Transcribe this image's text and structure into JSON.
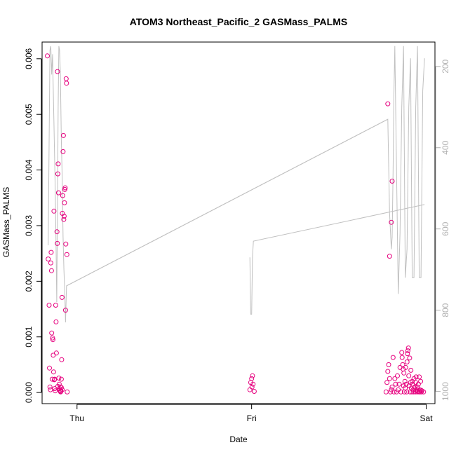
{
  "chart_data": {
    "type": "scatter",
    "title": "ATOM3 Northeast_Pacific_2 GASMass_PALMS",
    "xlabel": "Date",
    "ylabel": "GASMass_PALMS",
    "x_ticks": [
      "Thu",
      "Fri",
      "Sat"
    ],
    "y_ticks": [
      "0.000",
      "0.001",
      "0.002",
      "0.003",
      "0.004",
      "0.005",
      "0.006"
    ],
    "y_right_ticks": [
      "200",
      "400",
      "600",
      "800",
      "1000"
    ],
    "ylim": [
      -0.0002,
      0.0063
    ],
    "y_right_lim": [
      1030,
      140
    ],
    "xlim": [
      -0.2,
      2.05
    ],
    "colors": {
      "points": "#e6007e",
      "line": "#c0c0c0",
      "axis": "#000000",
      "right_axis": "#b0b0b0"
    },
    "series": [
      {
        "type": "scatter",
        "points": [
          [
            -0.17,
            0.00605
          ],
          [
            -0.165,
            0.0024
          ],
          [
            -0.16,
            0.00157
          ],
          [
            -0.158,
            0.00044
          ],
          [
            -0.155,
            0.0001
          ],
          [
            -0.152,
            5e-05
          ],
          [
            -0.15,
            0.00233
          ],
          [
            -0.148,
            0.00252
          ],
          [
            -0.146,
            0.00219
          ],
          [
            -0.145,
            0.00107
          ],
          [
            -0.14,
            0.00098
          ],
          [
            -0.138,
            0.00095
          ],
          [
            -0.136,
            0.00067
          ],
          [
            -0.134,
            0.00037
          ],
          [
            -0.132,
            0.00326
          ],
          [
            -0.13,
            0.00023
          ],
          [
            -0.128,
            7e-05
          ],
          [
            -0.125,
            3e-05
          ],
          [
            -0.122,
            0.00157
          ],
          [
            -0.12,
            0.00127
          ],
          [
            -0.118,
            0.00071
          ],
          [
            -0.115,
            0.00289
          ],
          [
            -0.113,
            0.00268
          ],
          [
            -0.112,
            0.00577
          ],
          [
            -0.11,
            0.00393
          ],
          [
            -0.108,
            0.00411
          ],
          [
            -0.106,
            0.00359
          ],
          [
            -0.104,
            0.00026
          ],
          [
            -0.102,
            0.00015
          ],
          [
            -0.1,
            7e-05
          ],
          [
            -0.098,
            4e-05
          ],
          [
            -0.096,
            0.0001
          ],
          [
            -0.094,
            1e-05
          ],
          [
            -0.092,
            3e-05
          ],
          [
            -0.09,
            9e-05
          ],
          [
            -0.088,
            0.00059
          ],
          [
            -0.086,
            0.00171
          ],
          [
            -0.084,
            0.00322
          ],
          [
            -0.082,
            0.00354
          ],
          [
            -0.08,
            0.00433
          ],
          [
            -0.078,
            0.00462
          ],
          [
            -0.076,
            0.00311
          ],
          [
            -0.074,
            0.00317
          ],
          [
            -0.072,
            0.00341
          ],
          [
            -0.07,
            0.00365
          ],
          [
            -0.068,
            0.00368
          ],
          [
            -0.066,
            0.00148
          ],
          [
            -0.064,
            0.00267
          ],
          [
            -0.062,
            0.00564
          ],
          [
            -0.06,
            0.00556
          ],
          [
            -0.058,
            0.00248
          ],
          [
            -0.056,
            1e-05
          ],
          [
            -0.142,
            0.00024
          ],
          [
            -0.128,
            0.00024
          ],
          [
            -0.11,
            0.00011
          ],
          [
            -0.09,
            0.00024
          ],
          [
            -0.095,
            2e-05
          ],
          [
            -0.085,
            5e-05
          ],
          [
            0.99,
            5e-05
          ],
          [
            0.995,
            0.00018
          ],
          [
            1.0,
            0.00025
          ],
          [
            1.002,
            0.0001
          ],
          [
            1.005,
            0.0003
          ],
          [
            1.008,
            0.00015
          ],
          [
            1.015,
            2e-05
          ],
          [
            1.78,
            0.00519
          ],
          [
            1.79,
            0.00245
          ],
          [
            1.8,
            0.00306
          ],
          [
            1.805,
            0.0038
          ],
          [
            1.77,
            1e-05
          ],
          [
            1.775,
            0.00018
          ],
          [
            1.78,
            0.00038
          ],
          [
            1.785,
            0.0005
          ],
          [
            1.79,
            0.00025
          ],
          [
            1.795,
            1e-05
          ],
          [
            1.8,
            5e-05
          ],
          [
            1.805,
            0.0001
          ],
          [
            1.81,
            0.00063
          ],
          [
            1.815,
            1e-05
          ],
          [
            1.82,
            0.00025
          ],
          [
            1.825,
            0.00015
          ],
          [
            1.83,
            1e-05
          ],
          [
            1.835,
            0.0003
          ],
          [
            1.84,
            5e-05
          ],
          [
            1.845,
            0.00015
          ],
          [
            1.85,
            0.00045
          ],
          [
            1.855,
            1e-05
          ],
          [
            1.86,
            0.00072
          ],
          [
            1.862,
            0.00063
          ],
          [
            1.865,
            0.0005
          ],
          [
            1.868,
            0.00042
          ],
          [
            1.87,
            0.00012
          ],
          [
            1.872,
            0.00035
          ],
          [
            1.875,
            1e-05
          ],
          [
            1.878,
            0.0002
          ],
          [
            1.88,
            8e-05
          ],
          [
            1.882,
            0.00045
          ],
          [
            1.885,
            0.00015
          ],
          [
            1.888,
            1e-05
          ],
          [
            1.89,
            0.00055
          ],
          [
            1.892,
            0.0007
          ],
          [
            1.895,
            0.00075
          ],
          [
            1.898,
            0.0008
          ],
          [
            1.9,
            0.0003
          ],
          [
            1.902,
            0.00012
          ],
          [
            1.905,
            0.00062
          ],
          [
            1.908,
            1e-05
          ],
          [
            1.91,
            0.00018
          ],
          [
            1.912,
            0.0004
          ],
          [
            1.915,
            8e-05
          ],
          [
            1.918,
            1e-05
          ],
          [
            1.92,
            0.0002
          ],
          [
            1.922,
            0.00015
          ],
          [
            1.925,
            5e-05
          ],
          [
            1.928,
            1e-05
          ],
          [
            1.93,
            0.00025
          ],
          [
            1.932,
            8e-05
          ],
          [
            1.935,
            0.0001
          ],
          [
            1.938,
            1e-05
          ],
          [
            1.94,
            0.00018
          ],
          [
            1.942,
            0.00028
          ],
          [
            1.945,
            5e-05
          ],
          [
            1.948,
            1e-05
          ],
          [
            1.95,
            0.0001
          ],
          [
            1.952,
            2e-05
          ],
          [
            1.955,
            0.00015
          ],
          [
            1.958,
            1e-05
          ],
          [
            1.96,
            0.00028
          ],
          [
            1.962,
            5e-05
          ],
          [
            1.965,
            1e-05
          ],
          [
            1.968,
            0.0002
          ],
          [
            1.97,
            4e-05
          ],
          [
            1.972,
            1e-05
          ],
          [
            1.975,
            3e-05
          ],
          [
            1.985,
            1e-05
          ]
        ]
      },
      {
        "type": "line",
        "axis": "right",
        "x": [
          -0.165,
          -0.155,
          -0.15,
          -0.145,
          -0.14,
          -0.132,
          -0.128,
          -0.124,
          -0.12,
          -0.116,
          -0.112,
          -0.108,
          -0.104,
          -0.1,
          -0.095,
          -0.09,
          -0.085,
          -0.08,
          -0.075,
          -0.07,
          -0.066,
          -0.06,
          1.78,
          1.79,
          1.8,
          1.805,
          1.81,
          1.815,
          1.82,
          1.83,
          1.84,
          1.85,
          1.86,
          1.87,
          1.88,
          1.89,
          1.9,
          1.91,
          1.92,
          1.93,
          1.94,
          1.95,
          1.96,
          1.97,
          1.98,
          1.99
        ],
        "y": [
          640,
          160,
          150,
          220,
          170,
          340,
          430,
          520,
          640,
          780,
          560,
          300,
          150,
          160,
          220,
          380,
          470,
          620,
          700,
          760,
          830,
          740,
          330,
          560,
          650,
          620,
          460,
          270,
          150,
          450,
          760,
          610,
          300,
          150,
          720,
          650,
          300,
          180,
          720,
          720,
          300,
          150,
          720,
          720,
          260,
          180
        ]
      },
      {
        "type": "line",
        "axis": "right",
        "x": [
          -0.06,
          1.78
        ],
        "y": [
          740,
          330
        ]
      },
      {
        "type": "line",
        "axis": "right",
        "x": [
          0.99,
          0.995,
          1.0,
          1.005,
          1.01,
          1.99
        ],
        "y": [
          670,
          810,
          810,
          670,
          630,
          540
        ]
      }
    ]
  }
}
